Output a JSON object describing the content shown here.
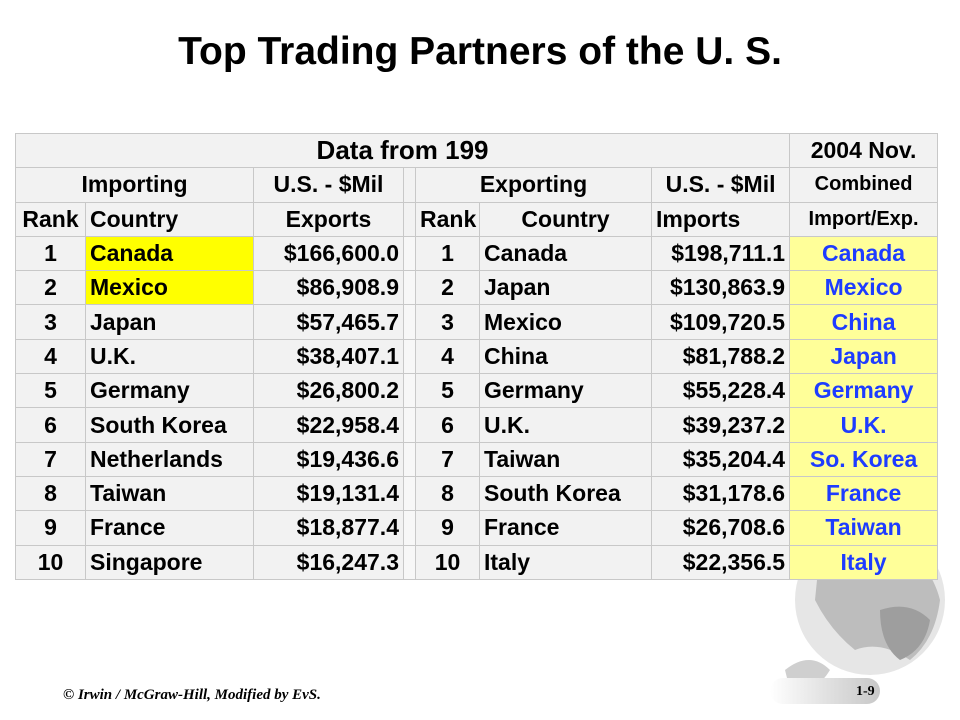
{
  "title": "Top Trading Partners of the U. S.",
  "table": {
    "header1": {
      "data_from": "Data from 199",
      "year_label": "2004 Nov."
    },
    "header2": {
      "importing": "Importing",
      "us_mil_1": "U.S. - $Mil",
      "exporting": "Exporting",
      "us_mil_2": "U.S.  - $Mil",
      "combined": "Combined"
    },
    "header3": {
      "rank_1": "Rank",
      "country_1": "Country",
      "exports": "Exports",
      "rank_2": "Rank",
      "country_2": "Country",
      "imports": "Imports",
      "import_exp": "Import/Exp."
    },
    "rows": [
      {
        "rank1": "1",
        "country1": "Canada",
        "exports": "$166,600.0",
        "rank2": "1",
        "country2": "Canada",
        "imports": "$198,711.1",
        "combined": "Canada"
      },
      {
        "rank1": "2",
        "country1": "Mexico",
        "exports": "$86,908.9",
        "rank2": "2",
        "country2": "Japan",
        "imports": "$130,863.9",
        "combined": "Mexico"
      },
      {
        "rank1": "3",
        "country1": "Japan",
        "exports": "$57,465.7",
        "rank2": "3",
        "country2": "Mexico",
        "imports": "$109,720.5",
        "combined": "China"
      },
      {
        "rank1": "4",
        "country1": "U.K.",
        "exports": "$38,407.1",
        "rank2": "4",
        "country2": "China",
        "imports": "$81,788.2",
        "combined": "Japan"
      },
      {
        "rank1": "5",
        "country1": "Germany",
        "exports": "$26,800.2",
        "rank2": "5",
        "country2": "Germany",
        "imports": "$55,228.4",
        "combined": "Germany"
      },
      {
        "rank1": "6",
        "country1": "South Korea",
        "exports": "$22,958.4",
        "rank2": "6",
        "country2": "U.K.",
        "imports": "$39,237.2",
        "combined": "U.K."
      },
      {
        "rank1": "7",
        "country1": "Netherlands",
        "exports": "$19,436.6",
        "rank2": "7",
        "country2": "Taiwan",
        "imports": "$35,204.4",
        "combined": "So. Korea"
      },
      {
        "rank1": "8",
        "country1": "Taiwan",
        "exports": "$19,131.4",
        "rank2": "8",
        "country2": "South Korea",
        "imports": "$31,178.6",
        "combined": "France"
      },
      {
        "rank1": "9",
        "country1": "France",
        "exports": "$18,877.4",
        "rank2": "9",
        "country2": "France",
        "imports": "$26,708.6",
        "combined": "Taiwan"
      },
      {
        "rank1": "10",
        "country1": "Singapore",
        "exports": "$16,247.3",
        "rank2": "10",
        "country2": "Italy",
        "imports": "$22,356.5",
        "combined": "Italy"
      }
    ],
    "highlight_color": "#ffff00",
    "combined_bg_color": "#ffff99",
    "combined_text_color": "#1e3cff"
  },
  "footer": {
    "credit": "© Irwin / McGraw-Hill, Modified by EvS.",
    "page": "1-9"
  },
  "decoration": {
    "icon": "globe-icon"
  }
}
